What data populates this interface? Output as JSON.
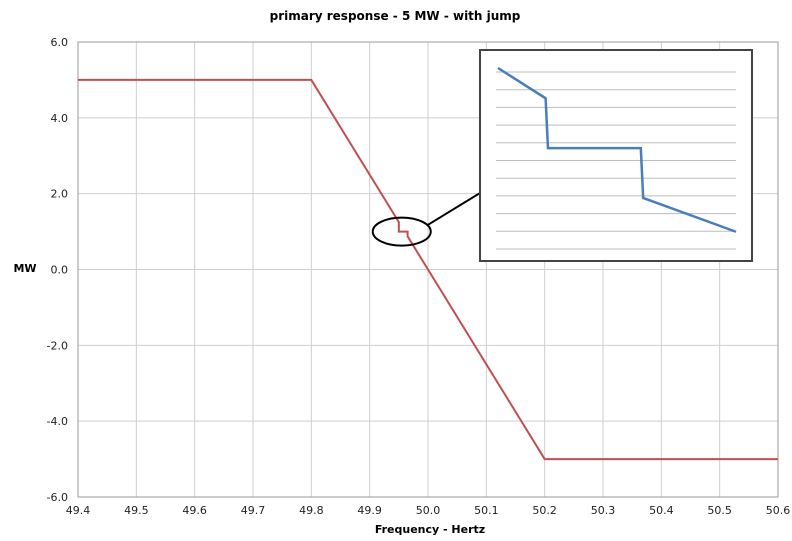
{
  "chart_data": {
    "type": "line",
    "title": "primary response - 5 MW - with jump",
    "xlabel": "Frequency - Hertz",
    "ylabel": "MW",
    "xlim": [
      49.4,
      50.6
    ],
    "ylim": [
      -6.0,
      6.0
    ],
    "x_ticks": [
      "49.4",
      "49.5",
      "49.6",
      "49.7",
      "49.8",
      "49.9",
      "50.0",
      "50.1",
      "50.2",
      "50.3",
      "50.4",
      "50.5",
      "50.6"
    ],
    "y_ticks": [
      "6.0",
      "4.0",
      "2.0",
      "0.0",
      "-2.0",
      "-4.0",
      "-6.0"
    ],
    "grid": true,
    "series": [
      {
        "color": "#c0504d",
        "points": [
          [
            49.4,
            5.0
          ],
          [
            49.8,
            5.0
          ],
          [
            49.95,
            1.25
          ],
          [
            49.95,
            1.0
          ],
          [
            49.965,
            1.0
          ],
          [
            49.965,
            0.875
          ],
          [
            50.2,
            -5.0
          ],
          [
            50.6,
            -5.0
          ]
        ]
      }
    ],
    "annotation": {
      "type": "zoom-inset",
      "circle_center": [
        49.955,
        1.0
      ],
      "inset_line_color": "#4a7ebb",
      "inset_points": [
        [
          0,
          1.0
        ],
        [
          0.2,
          0.83
        ],
        [
          0.21,
          0.55
        ],
        [
          0.6,
          0.55
        ],
        [
          0.61,
          0.27
        ],
        [
          1.0,
          0.08
        ]
      ]
    }
  }
}
